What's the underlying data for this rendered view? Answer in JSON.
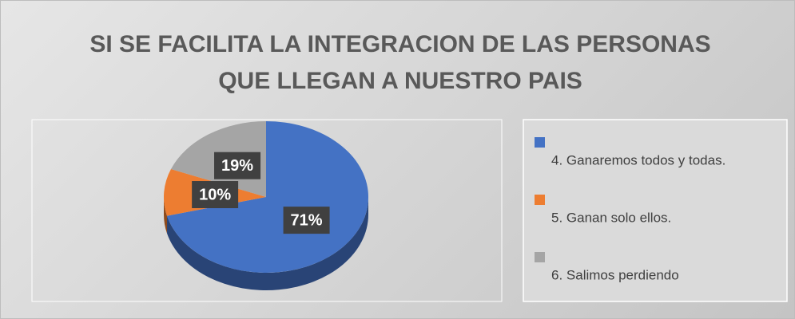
{
  "chart_data": {
    "type": "pie",
    "title": "SI SE FACILITA LA INTEGRACION DE LAS PERSONAS QUE LLEGAN A NUESTRO PAIS",
    "categories": [
      "4. Ganaremos todos y todas.",
      "5. Ganan solo ellos.",
      "6. Salimos perdiendo"
    ],
    "values": [
      71,
      10,
      19
    ],
    "value_labels": [
      "71%",
      "10%",
      "19%"
    ],
    "colors": [
      "#4472c4",
      "#ed7d31",
      "#a5a5a5"
    ],
    "legend": "right"
  }
}
